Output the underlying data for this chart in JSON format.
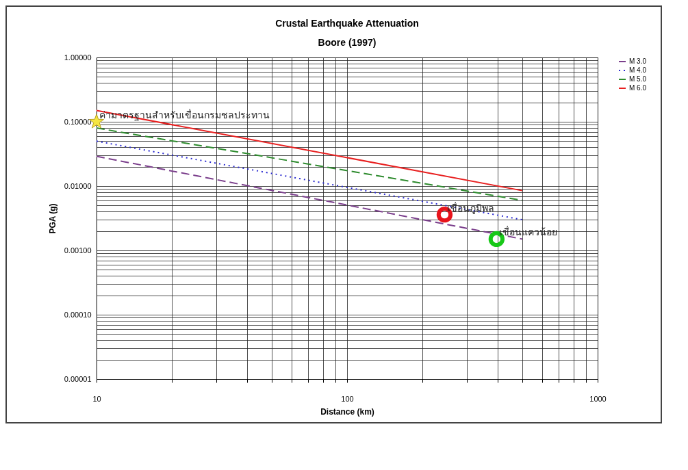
{
  "chart_data": {
    "type": "line",
    "title": "Crustal Earthquake Attenuation",
    "subtitle": "Boore (1997)",
    "xlabel": "Distance (km)",
    "ylabel": "PGA (g)",
    "log": "xy",
    "grid": true,
    "legend": "right",
    "xlim": [
      10,
      1000
    ],
    "ylim": [
      1e-05,
      1
    ],
    "xticks": [
      10,
      {
        "value": 20,
        "label": null
      },
      {
        "value": 30,
        "label": null
      },
      {
        "value": 40,
        "label": null
      },
      {
        "value": 50,
        "label": null
      },
      {
        "value": 60,
        "label": null
      },
      {
        "value": 70,
        "label": null
      },
      {
        "value": 80,
        "label": null
      },
      {
        "value": 90,
        "label": null
      },
      100,
      {
        "value": 200,
        "label": null
      },
      {
        "value": 300,
        "label": null
      },
      {
        "value": 400,
        "label": null
      },
      {
        "value": 500,
        "label": null
      },
      {
        "value": 600,
        "label": null
      },
      {
        "value": 700,
        "label": null
      },
      {
        "value": 800,
        "label": null
      },
      {
        "value": 900,
        "label": null
      },
      1000
    ],
    "yticks": [
      {
        "value": 1e-05,
        "label": "0.00001"
      },
      {
        "value": 2e-05,
        "label": null
      },
      {
        "value": 3e-05,
        "label": null
      },
      {
        "value": 4e-05,
        "label": null
      },
      {
        "value": 5e-05,
        "label": null
      },
      {
        "value": 6e-05,
        "label": null
      },
      {
        "value": 7e-05,
        "label": null
      },
      {
        "value": 8e-05,
        "label": null
      },
      {
        "value": 9e-05,
        "label": null
      },
      {
        "value": 0.0001,
        "label": "0.00010"
      },
      {
        "value": 0.0002,
        "label": null
      },
      {
        "value": 0.0003,
        "label": null
      },
      {
        "value": 0.0004,
        "label": null
      },
      {
        "value": 0.0005,
        "label": null
      },
      {
        "value": 0.0006,
        "label": null
      },
      {
        "value": 0.0007,
        "label": null
      },
      {
        "value": 0.0008,
        "label": null
      },
      {
        "value": 0.0009,
        "label": null
      },
      {
        "value": 0.001,
        "label": "0.00100"
      },
      {
        "value": 0.002,
        "label": null
      },
      {
        "value": 0.003,
        "label": null
      },
      {
        "value": 0.004,
        "label": null
      },
      {
        "value": 0.005,
        "label": null
      },
      {
        "value": 0.006,
        "label": null
      },
      {
        "value": 0.007,
        "label": null
      },
      {
        "value": 0.008,
        "label": null
      },
      {
        "value": 0.009,
        "label": null
      },
      {
        "value": 0.01,
        "label": "0.01000"
      },
      {
        "value": 0.02,
        "label": null
      },
      {
        "value": 0.03,
        "label": null
      },
      {
        "value": 0.04,
        "label": null
      },
      {
        "value": 0.05,
        "label": null
      },
      {
        "value": 0.06,
        "label": null
      },
      {
        "value": 0.07,
        "label": null
      },
      {
        "value": 0.08,
        "label": null
      },
      {
        "value": 0.09,
        "label": null
      },
      {
        "value": 0.1,
        "label": "0.10000"
      },
      {
        "value": 0.2,
        "label": null
      },
      {
        "value": 0.3,
        "label": null
      },
      {
        "value": 0.4,
        "label": null
      },
      {
        "value": 0.5,
        "label": null
      },
      {
        "value": 0.6,
        "label": null
      },
      {
        "value": 0.7,
        "label": null
      },
      {
        "value": 0.8,
        "label": null
      },
      {
        "value": 0.9,
        "label": null
      },
      {
        "value": 1,
        "label": "1.00000"
      }
    ],
    "series": [
      {
        "name": "M 3.0",
        "color": "#7b3f8c",
        "line_style": "dashed",
        "x": [
          10,
          500
        ],
        "values": [
          0.029,
          0.0015
        ]
      },
      {
        "name": "M 4.0",
        "color": "#2a2ad0",
        "line_style": "dotted",
        "x": [
          10,
          500
        ],
        "values": [
          0.05,
          0.003
        ]
      },
      {
        "name": "M 5.0",
        "color": "#2e8b2e",
        "line_style": "dashed",
        "x": [
          10,
          500
        ],
        "values": [
          0.08,
          0.006
        ]
      },
      {
        "name": "M 6.0",
        "color": "#e82020",
        "line_style": "solid",
        "x": [
          10,
          500
        ],
        "values": [
          0.15,
          0.0085
        ]
      },
      {
        "type": "scatter",
        "marker": "star",
        "color": "#f5e642",
        "x": [
          10
        ],
        "values": [
          0.1
        ]
      },
      {
        "type": "scatter",
        "marker": "circle",
        "color": "#e8141c",
        "x": [
          245
        ],
        "values": [
          0.0036
        ]
      },
      {
        "type": "scatter",
        "marker": "circle",
        "color": "#18c818",
        "x": [
          395
        ],
        "values": [
          0.0015
        ]
      }
    ],
    "annotations": [
      {
        "text": "ค่ามาตรฐานสำหรับเขื่อนกรมชลประทาน",
        "x": 10,
        "y": 0.1
      },
      {
        "text": "เขื่อนภูมิพล",
        "x": 245,
        "y": 0.0036
      },
      {
        "text": "เขื่อนแควน้อย",
        "x": 395,
        "y": 0.0015
      }
    ]
  }
}
